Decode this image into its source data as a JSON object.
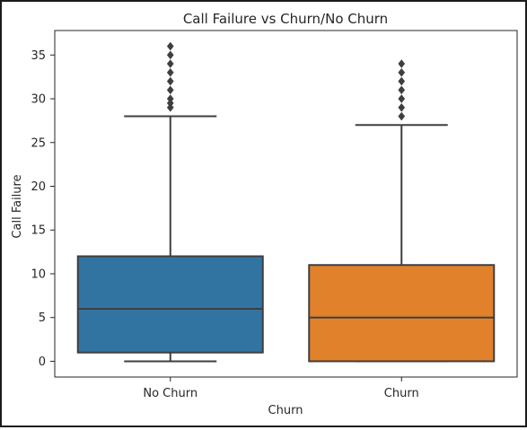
{
  "chart_data": {
    "type": "boxplot",
    "title": "Call Failure vs Churn/No Churn",
    "xlabel": "Churn",
    "ylabel": "Call Failure",
    "ylim": [
      -1.8,
      37.8
    ],
    "yticks": [
      0,
      5,
      10,
      15,
      20,
      25,
      30,
      35
    ],
    "grid": false,
    "categories": [
      "No Churn",
      "Churn"
    ],
    "boxes": [
      {
        "label": "No Churn",
        "color": "#3274a1",
        "whisker_low": 0,
        "q1": 1,
        "median": 6,
        "q3": 12,
        "whisker_high": 28,
        "outliers": [
          29,
          29.5,
          30,
          31,
          32,
          33,
          34,
          35,
          36
        ]
      },
      {
        "label": "Churn",
        "color": "#e1812c",
        "whisker_low": 0,
        "q1": 0,
        "median": 5,
        "q3": 11,
        "whisker_high": 27,
        "outliers": [
          28,
          29,
          30,
          31,
          32,
          33,
          34
        ]
      }
    ]
  }
}
